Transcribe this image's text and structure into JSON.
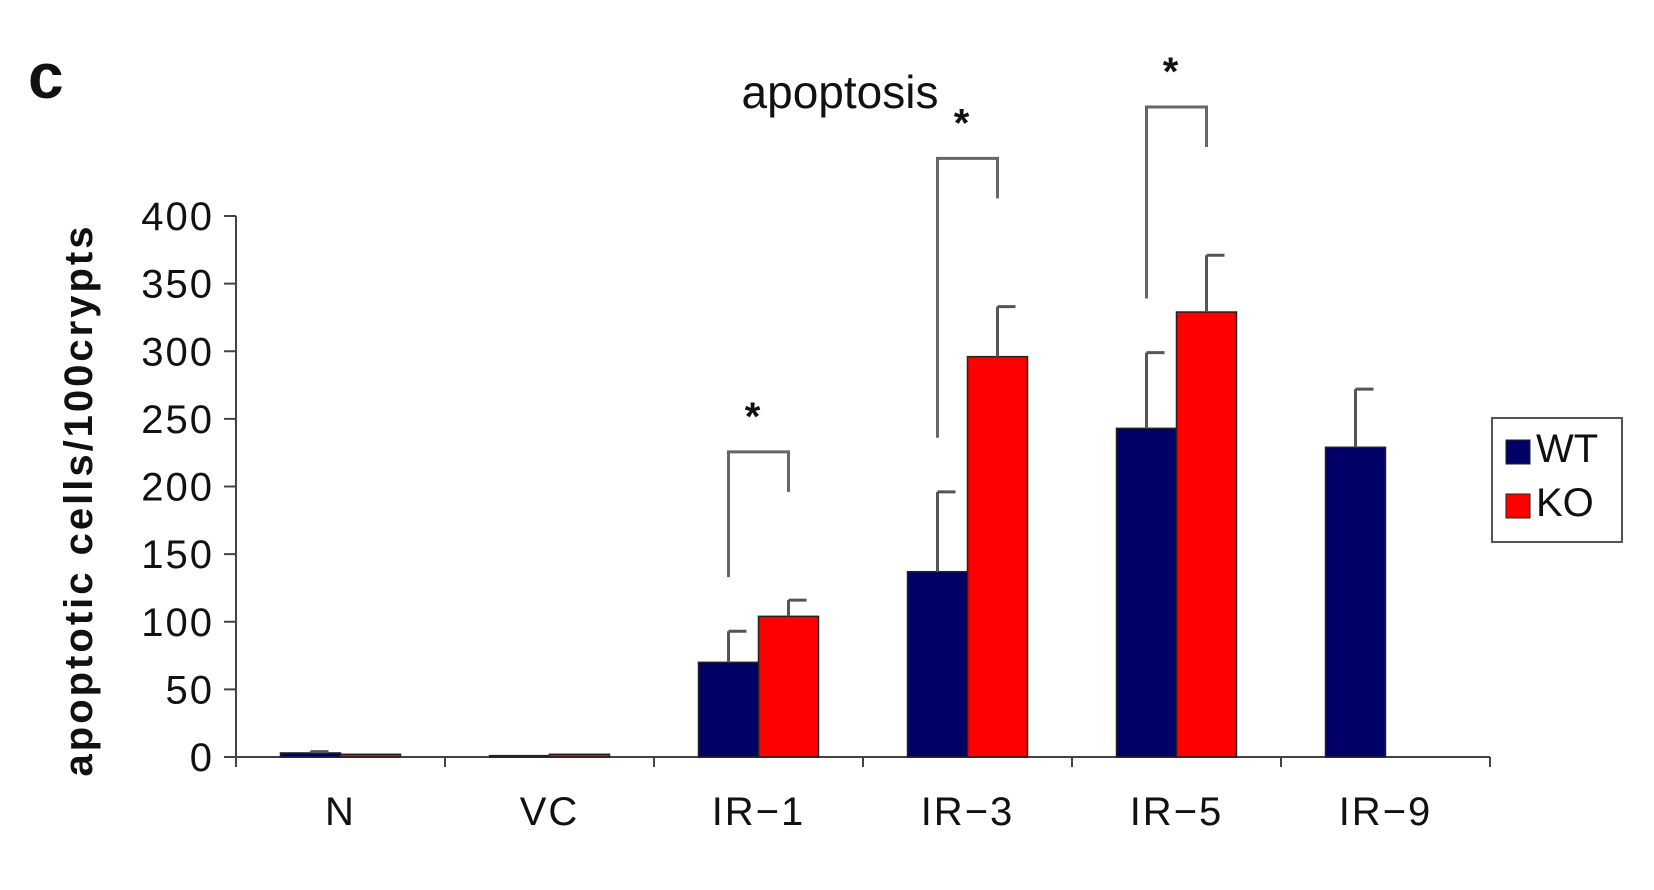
{
  "panel_label": "c",
  "chart_data": {
    "type": "bar",
    "title": "apoptosis",
    "xlabel": "",
    "ylabel": "apoptotic cells/100crypts",
    "ylim": [
      0,
      400
    ],
    "yticks": [
      0,
      50,
      100,
      150,
      200,
      250,
      300,
      350,
      400
    ],
    "categories": [
      "N",
      "VC",
      "IR-1",
      "IR-3",
      "IR-5",
      "IR-9"
    ],
    "series": [
      {
        "name": "WT",
        "color": "#000066",
        "values": [
          3,
          1,
          70,
          137,
          243,
          229
        ],
        "errors": [
          1,
          0,
          23,
          59,
          56,
          43
        ]
      },
      {
        "name": "KO",
        "color": "#ff0000",
        "values": [
          2,
          2,
          104,
          296,
          329,
          null
        ],
        "errors": [
          0,
          0,
          12,
          37,
          42,
          null
        ]
      }
    ],
    "annotations": [
      {
        "category": "IR-1",
        "text": "*"
      },
      {
        "category": "IR-3",
        "text": "*"
      },
      {
        "category": "IR-5",
        "text": "*"
      }
    ],
    "legend_position": "right"
  }
}
